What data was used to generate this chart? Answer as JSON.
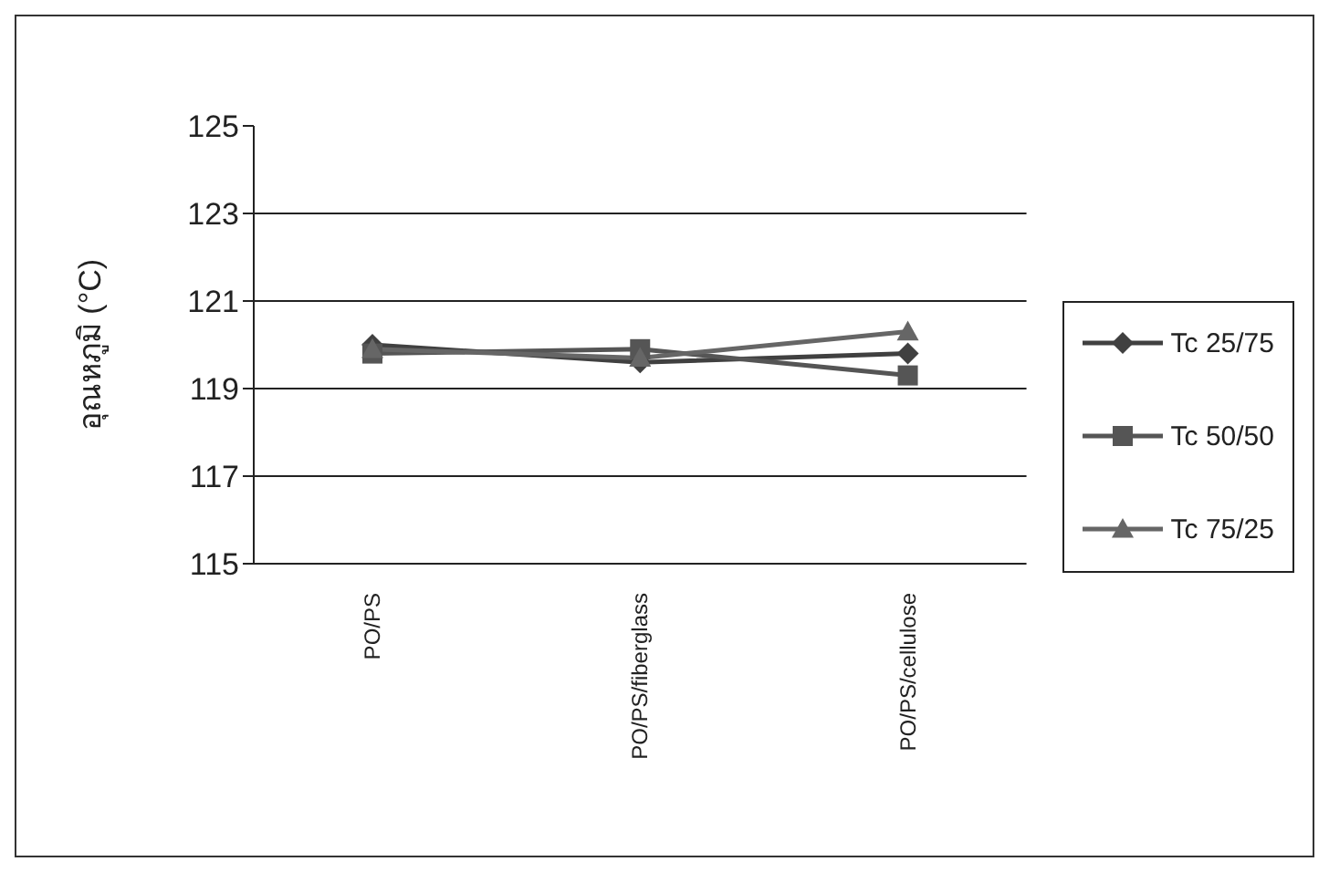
{
  "chart_data": {
    "type": "line",
    "ylabel": "อุณหภูมิ (°C)",
    "categories": [
      "PO/PS",
      "PO/PS/fiberglass",
      "PO/PS/cellulose"
    ],
    "series": [
      {
        "name": "Tc 25/75",
        "color": "#404040",
        "marker": "diamond",
        "values": [
          120.0,
          119.6,
          119.8
        ]
      },
      {
        "name": "Tc 50/50",
        "color": "#555555",
        "marker": "square",
        "values": [
          119.8,
          119.9,
          119.3
        ]
      },
      {
        "name": "Tc 75/25",
        "color": "#666666",
        "marker": "triangle",
        "values": [
          119.9,
          119.7,
          120.3
        ]
      }
    ],
    "ylim": [
      115,
      125
    ],
    "yticks": [
      115,
      117,
      119,
      121,
      123,
      125
    ],
    "grid": "y",
    "legend": "right"
  }
}
